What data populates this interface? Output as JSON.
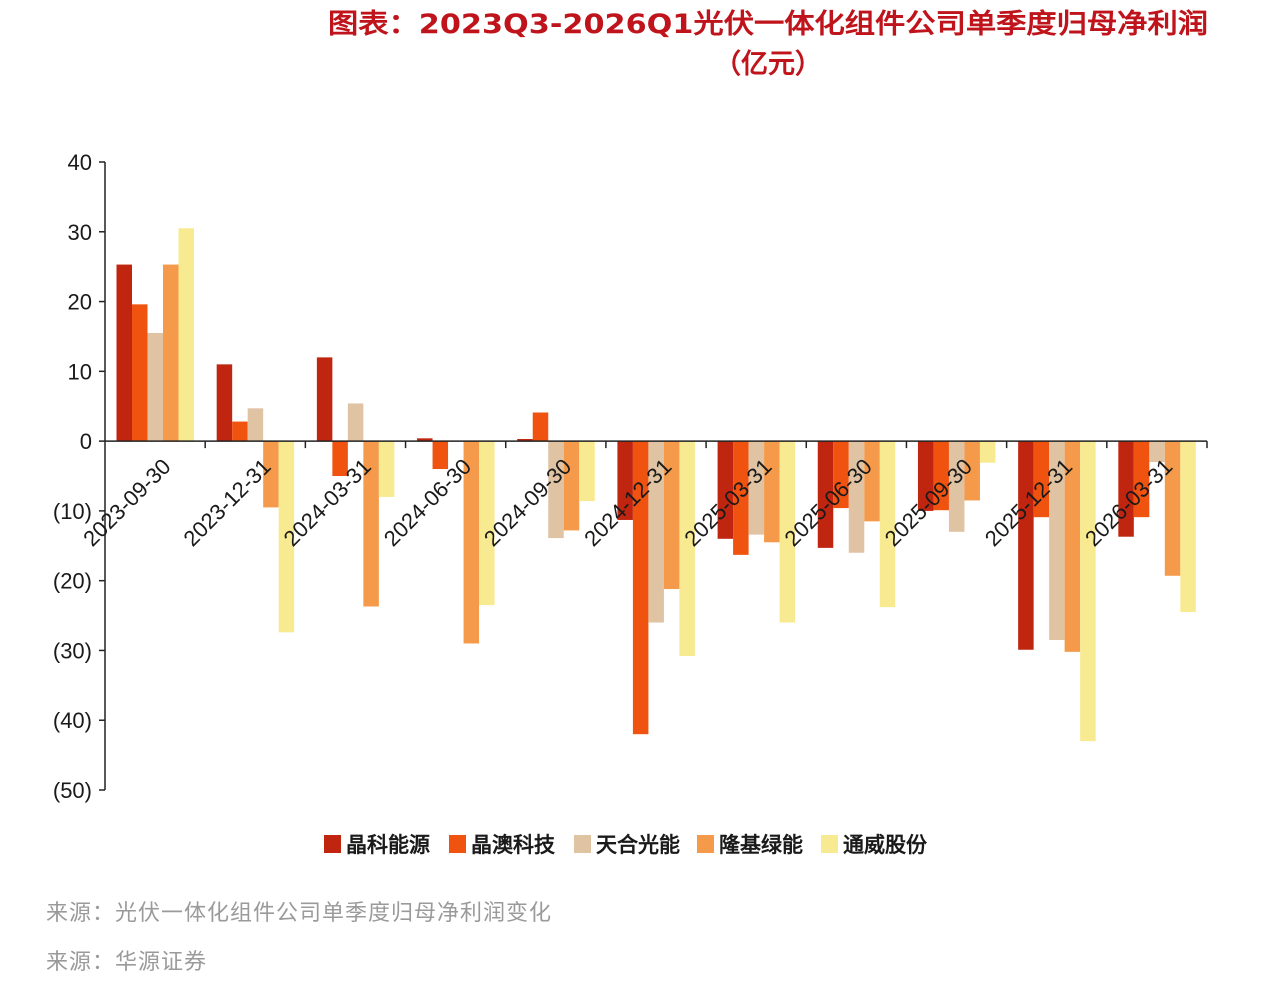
{
  "title_line1": "图表：2023Q3-2026Q1光伏一体化组件公司单季度归母净利润",
  "title_line2": "（亿元）",
  "source_lines": [
    "来源：光伏一体化组件公司单季度归母净利润变化",
    "来源：华源证券"
  ],
  "chart_data": {
    "type": "bar",
    "categories": [
      "2023-09-30",
      "2023-12-31",
      "2024-03-31",
      "2024-06-30",
      "2024-09-30",
      "2024-12-31",
      "2025-03-31",
      "2025-06-30",
      "2025-09-30",
      "2025-12-31",
      "2026-03-31"
    ],
    "series": [
      {
        "name": "晶科能源",
        "color": "#c0250f",
        "values": [
          25.3,
          11.0,
          12.0,
          0.4,
          0.3,
          -11.3,
          -14.0,
          -15.3,
          -10.0,
          -29.9,
          -13.7
        ]
      },
      {
        "name": "晶澳科技",
        "color": "#f0520f",
        "values": [
          19.6,
          2.8,
          -5.0,
          -4.0,
          4.1,
          -42.0,
          -16.3,
          -9.6,
          -9.9,
          -10.9,
          -10.9
        ]
      },
      {
        "name": "天合光能",
        "color": "#dfc3a3",
        "values": [
          15.5,
          4.7,
          5.4,
          0.0,
          -13.9,
          -26.0,
          -13.4,
          -16.0,
          -13.0,
          -28.5,
          -3.0
        ]
      },
      {
        "name": "隆基绿能",
        "color": "#f49a4a",
        "values": [
          25.3,
          -9.5,
          -23.7,
          -29.0,
          -12.8,
          -21.2,
          -14.5,
          -11.5,
          -8.5,
          -30.2,
          -19.3
        ]
      },
      {
        "name": "通威股份",
        "color": "#f7ea90",
        "values": [
          30.5,
          -27.4,
          -8.0,
          -23.5,
          -8.6,
          -30.8,
          -26.0,
          -23.8,
          -3.1,
          -43.0,
          -24.5
        ]
      }
    ],
    "yticks": [
      40,
      30,
      20,
      10,
      0,
      -10,
      -20,
      -30,
      -40,
      -50
    ],
    "ytick_labels": [
      "40",
      "30",
      "20",
      "10",
      "0",
      "(10)",
      "(20)",
      "(30)",
      "(40)",
      "(50)"
    ],
    "ylim": [
      -50,
      40
    ],
    "legend_position": "bottom-center",
    "grid": false
  }
}
